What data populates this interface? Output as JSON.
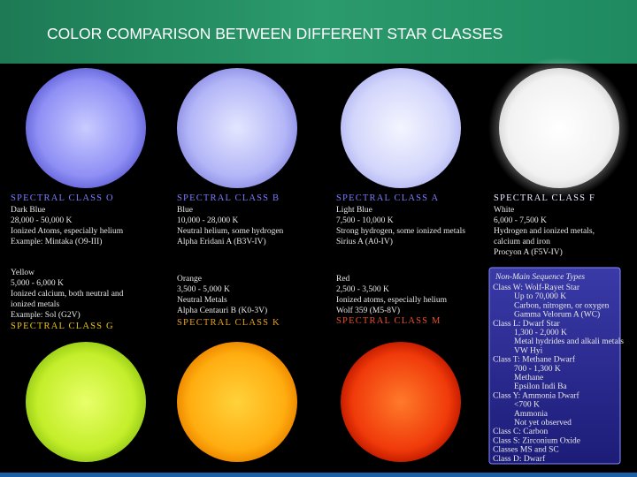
{
  "title": "COLOR COMPARISON BETWEEN DIFFERENT STAR CLASSES",
  "stars": [
    {
      "heading": "SPECTRAL CLASS O",
      "lines": [
        "Dark Blue",
        "28,000 - 50,000 K",
        "Ionized Atoms, especially helium",
        "Example: Mintaka (O9-III)"
      ]
    },
    {
      "heading": "SPECTRAL CLASS B",
      "lines": [
        "Blue",
        "10,000 - 28,000 K",
        "Neutral helium, some hydrogen",
        "Alpha Eridani A (B3V-IV)"
      ]
    },
    {
      "heading": "SPECTRAL CLASS A",
      "lines": [
        "Light Blue",
        "7,500 - 10,000 K",
        "Strong hydrogen, some ionized metals",
        "Sirius A (A0-IV)"
      ]
    },
    {
      "heading": "SPECTRAL CLASS F",
      "lines": [
        "White",
        "6,000 - 7,500 K",
        "Hydrogen and ionized metals,",
        "calcium and iron",
        "Procyon A (F5V-IV)"
      ]
    },
    {
      "heading": "SPECTRAL CLASS G",
      "lines": [
        "Yellow",
        "5,000 - 6,000 K",
        "Ionized calcium, both neutral and",
        "ionized metals",
        "Example: Sol (G2V)"
      ]
    },
    {
      "heading": "SPECTRAL CLASS K",
      "lines": [
        "Orange",
        "3,500 - 5,000 K",
        "Neutral Metals",
        "Alpha Centauri B (K0-3V)"
      ]
    },
    {
      "heading": "SPECTRAL CLASS M",
      "lines": [
        "Red",
        "2,500 - 3,500 K",
        "Ionized atoms, especially helium",
        "Wolf 359 (M5-8V)"
      ]
    }
  ],
  "other_types": {
    "heading": "Non-Main Sequence Types",
    "lines": [
      "Class W: Wolf-Rayet Star",
      "Up to 70,000 K",
      "Carbon, nitrogen, or oxygen",
      "Gamma Velorum A (WC)",
      "Class L: Dwarf Star",
      "1,300 - 2,000 K",
      "Metal hydrides and alkali metals",
      "VW Hyi",
      "Class T: Methane Dwarf",
      "700 - 1,300 K",
      "Methane",
      "Epsilon Indi Ba",
      "Class Y: Ammonia Dwarf",
      "<700 K",
      "Ammonia",
      "Not yet observed",
      "Class C: Carbon",
      "Class S: Zirconium Oxide",
      "Classes MS and SC",
      "Class D: Dwarf"
    ]
  }
}
